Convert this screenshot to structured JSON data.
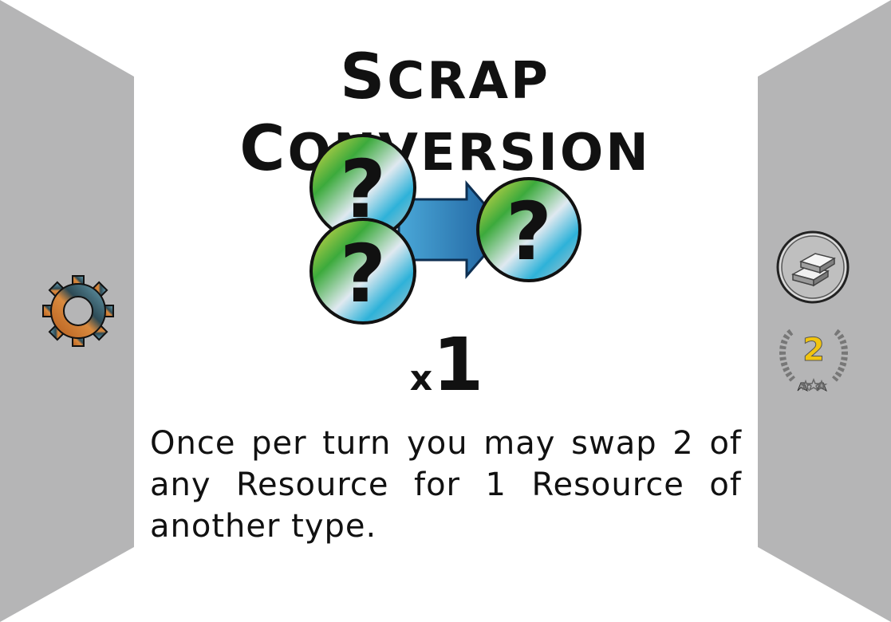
{
  "card": {
    "title_first_initial": "S",
    "title_first_rest": "CRAP",
    "title_second_initial": "C",
    "title_second_rest": "ONVERSION",
    "multiplier_prefix": "x",
    "multiplier_value": "1",
    "description": "Once per turn you may swap 2 of any Resource for 1 Resource of another type."
  },
  "icons": {
    "input_resource_1": "question-resource-token-icon",
    "input_resource_2": "question-resource-token-icon",
    "conversion_arrow": "blue-arrow-icon",
    "output_resource": "question-resource-token-icon",
    "left_side": "gear-icon",
    "right_top": "silver-ingot-icon",
    "right_bottom": "rank-laurel-icon"
  },
  "tokens": {
    "question_mark": "?"
  },
  "rank": {
    "level": "2"
  },
  "colors": {
    "frame_gray": "#b5b5b6",
    "arrow_blue": "#1e6fb0",
    "rank_gold": "#f1c40f",
    "gear_orange": "#c0692a",
    "gear_teal": "#4b7f8f"
  }
}
